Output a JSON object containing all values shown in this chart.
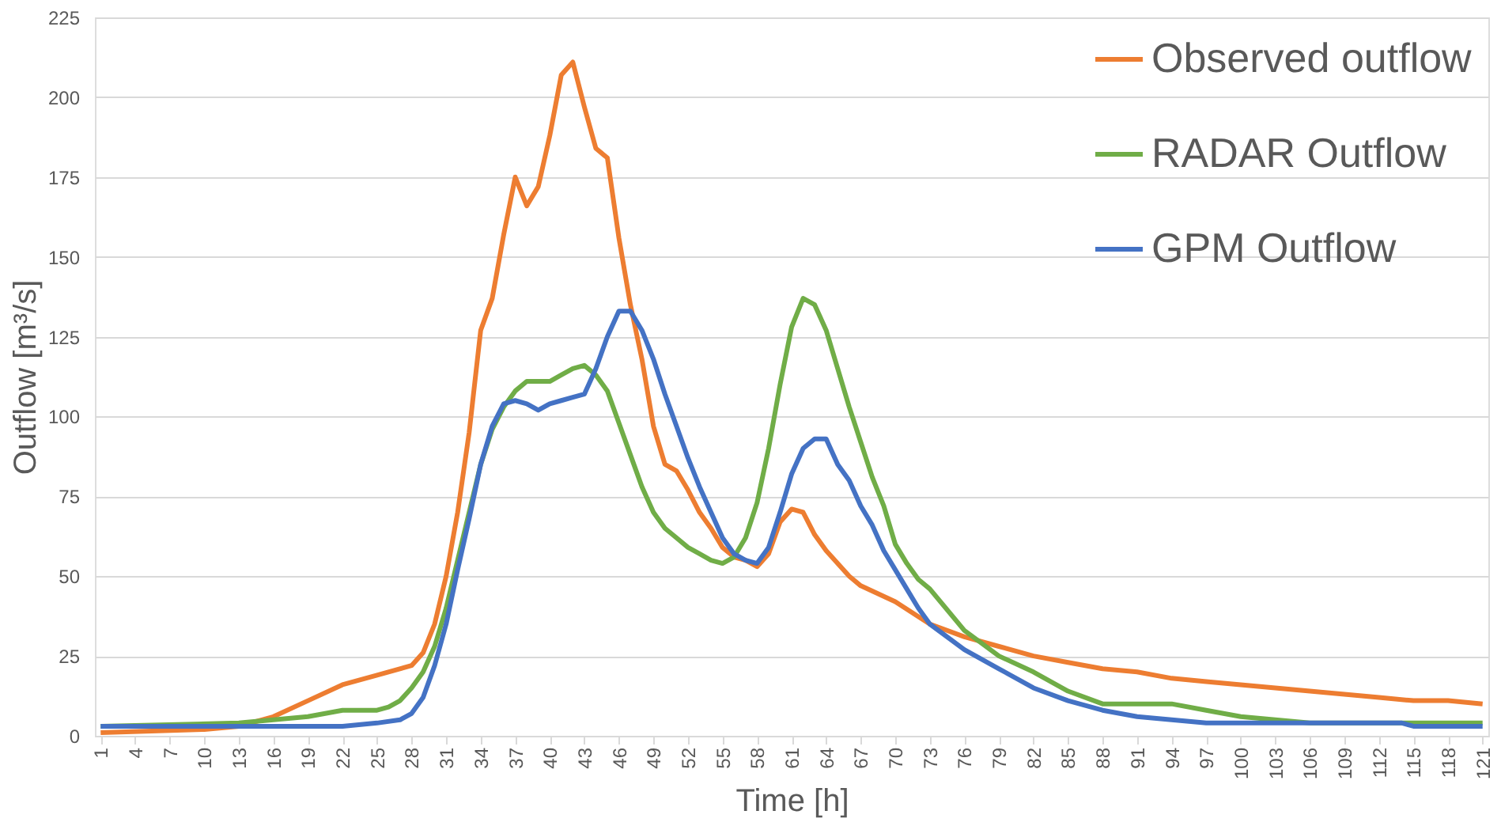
{
  "chart_data": {
    "type": "line",
    "xlabel": "Time [h]",
    "ylabel": "Outflow [m³/s]",
    "xlim": [
      0.5,
      121.5
    ],
    "xticks": [
      1,
      4,
      7,
      10,
      13,
      16,
      19,
      22,
      25,
      28,
      31,
      34,
      37,
      40,
      43,
      46,
      49,
      52,
      55,
      58,
      61,
      64,
      67,
      70,
      73,
      76,
      79,
      82,
      85,
      88,
      91,
      94,
      97,
      100,
      103,
      106,
      109,
      112,
      115,
      118,
      121
    ],
    "ylim": [
      0,
      225
    ],
    "yticks": [
      0,
      25,
      50,
      75,
      100,
      125,
      150,
      175,
      200,
      225
    ],
    "grid": "y",
    "legend": "top right",
    "series": [
      {
        "name": "Observed outflow",
        "color": "#ed7d31",
        "x": [
          1,
          10,
          13,
          16,
          19,
          22,
          25,
          28,
          29,
          30,
          31,
          32,
          33,
          34,
          35,
          36,
          37,
          38,
          39,
          40,
          41,
          42,
          43,
          44,
          45,
          46,
          47,
          48,
          49,
          50,
          51,
          52,
          53,
          54,
          55,
          56,
          57,
          58,
          59,
          60,
          61,
          62,
          63,
          64,
          66,
          67,
          70,
          73,
          76,
          79,
          82,
          85,
          88,
          91,
          94,
          97,
          100,
          103,
          106,
          109,
          112,
          115,
          118,
          121
        ],
        "values": [
          1,
          2,
          3,
          6,
          11,
          16,
          19,
          22,
          26,
          35,
          50,
          70,
          95,
          127,
          137,
          157,
          175,
          166,
          172,
          188,
          207,
          211,
          197,
          184,
          181,
          156,
          135,
          118,
          97,
          85,
          83,
          77,
          70,
          65,
          59,
          56,
          55,
          53,
          57,
          67,
          71,
          70,
          63,
          58,
          50,
          47,
          42,
          35,
          31,
          28,
          25,
          23,
          21,
          20,
          18,
          17,
          16,
          15,
          14,
          13,
          12,
          11,
          11,
          10
        ]
      },
      {
        "name": "RADAR Outflow",
        "color": "#70ad47",
        "x": [
          1,
          13,
          16,
          19,
          22,
          25,
          26,
          27,
          28,
          29,
          30,
          31,
          32,
          33,
          34,
          35,
          36,
          37,
          38,
          40,
          41,
          42,
          43,
          44,
          45,
          46,
          47,
          48,
          49,
          50,
          51,
          52,
          53,
          54,
          55,
          56,
          57,
          58,
          59,
          60,
          61,
          62,
          63,
          64,
          65,
          66,
          67,
          68,
          69,
          70,
          71,
          72,
          73,
          76,
          79,
          82,
          85,
          88,
          91,
          94,
          97,
          100,
          103,
          106,
          121
        ],
        "values": [
          3,
          4,
          5,
          6,
          8,
          8,
          9,
          11,
          15,
          20,
          28,
          40,
          55,
          70,
          85,
          96,
          103,
          108,
          111,
          111,
          113,
          115,
          116,
          113,
          108,
          98,
          88,
          78,
          70,
          65,
          62,
          59,
          57,
          55,
          54,
          56,
          62,
          73,
          90,
          110,
          128,
          137,
          135,
          127,
          115,
          103,
          92,
          81,
          72,
          60,
          54,
          49,
          46,
          33,
          25,
          20,
          14,
          10,
          10,
          10,
          8,
          6,
          5,
          4,
          4
        ]
      },
      {
        "name": " GPM Outflow",
        "color": "#4472c4",
        "x": [
          1,
          19,
          22,
          25,
          27,
          28,
          29,
          30,
          31,
          32,
          33,
          34,
          35,
          36,
          37,
          38,
          39,
          40,
          41,
          42,
          43,
          44,
          45,
          46,
          47,
          48,
          49,
          50,
          51,
          52,
          53,
          54,
          55,
          56,
          57,
          58,
          59,
          60,
          61,
          62,
          63,
          64,
          65,
          66,
          67,
          68,
          69,
          70,
          71,
          72,
          73,
          76,
          79,
          82,
          85,
          88,
          91,
          94,
          97,
          114,
          115,
          121
        ],
        "values": [
          3,
          3,
          3,
          4,
          5,
          7,
          12,
          22,
          35,
          52,
          68,
          85,
          97,
          104,
          105,
          104,
          102,
          104,
          105,
          106,
          107,
          115,
          125,
          133,
          133,
          127,
          118,
          107,
          97,
          87,
          78,
          70,
          62,
          57,
          55,
          54,
          59,
          70,
          82,
          90,
          93,
          93,
          85,
          80,
          72,
          66,
          58,
          52,
          46,
          40,
          35,
          27,
          21,
          15,
          11,
          8,
          6,
          5,
          4,
          4,
          3,
          3
        ]
      }
    ]
  }
}
